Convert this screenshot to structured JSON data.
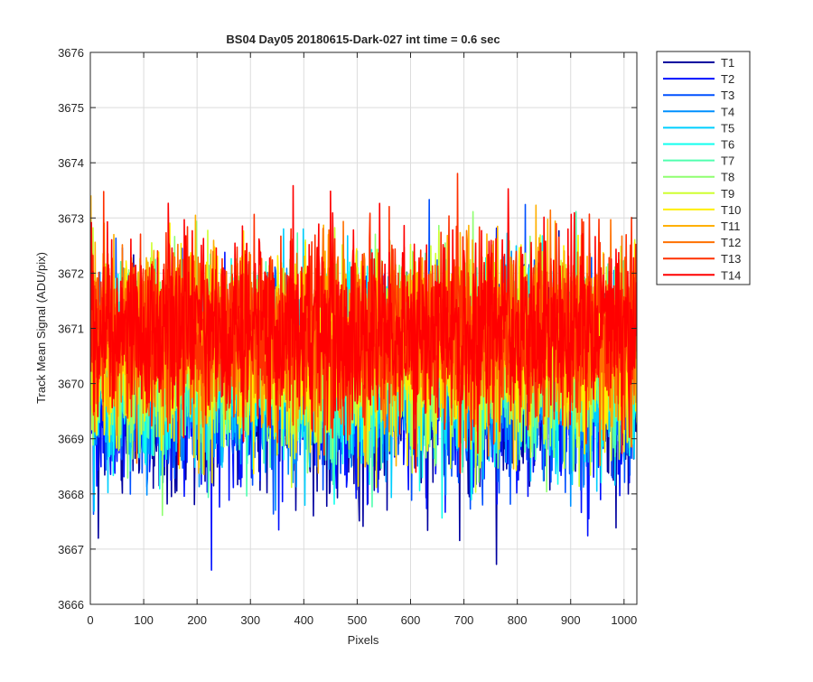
{
  "chart_data": {
    "type": "line",
    "title": "BS04 Day05 20180615-Dark-027 int time = 0.6 sec",
    "xlabel": "Pixels",
    "ylabel": "Track Mean Signal (ADU/pix)",
    "xlim": [
      0,
      1024
    ],
    "ylim": [
      3666,
      3676
    ],
    "xticks": [
      0,
      100,
      200,
      300,
      400,
      500,
      600,
      700,
      800,
      900,
      1000
    ],
    "yticks": [
      3666,
      3667,
      3668,
      3669,
      3670,
      3671,
      3672,
      3673,
      3674,
      3675,
      3676
    ],
    "grid": true,
    "legend_position": "outside-top-right",
    "x_range": [
      1,
      1024
    ],
    "series_note": "Dense per-pixel dark noise traces, approx. mean and spread per track",
    "series": [
      {
        "name": "T1",
        "color": "#00009f",
        "mean": 3669.8,
        "std": 0.85
      },
      {
        "name": "T2",
        "color": "#0010ff",
        "mean": 3669.9,
        "std": 0.85
      },
      {
        "name": "T3",
        "color": "#0050ff",
        "mean": 3670.0,
        "std": 0.85
      },
      {
        "name": "T4",
        "color": "#0090ff",
        "mean": 3670.1,
        "std": 0.8
      },
      {
        "name": "T5",
        "color": "#00cfff",
        "mean": 3670.2,
        "std": 0.8
      },
      {
        "name": "T6",
        "color": "#10ffef",
        "mean": 3670.3,
        "std": 0.8
      },
      {
        "name": "T7",
        "color": "#50ffaf",
        "mean": 3670.4,
        "std": 0.8
      },
      {
        "name": "T8",
        "color": "#8fff70",
        "mean": 3670.5,
        "std": 0.8
      },
      {
        "name": "T9",
        "color": "#cfff30",
        "mean": 3670.6,
        "std": 0.8
      },
      {
        "name": "T10",
        "color": "#ffef00",
        "mean": 3670.7,
        "std": 0.8
      },
      {
        "name": "T11",
        "color": "#ffb000",
        "mean": 3670.8,
        "std": 0.8
      },
      {
        "name": "T12",
        "color": "#ff7000",
        "mean": 3670.9,
        "std": 0.8
      },
      {
        "name": "T13",
        "color": "#ff3000",
        "mean": 3671.0,
        "std": 0.8
      },
      {
        "name": "T14",
        "color": "#ff0000",
        "mean": 3671.0,
        "std": 0.8
      }
    ]
  }
}
